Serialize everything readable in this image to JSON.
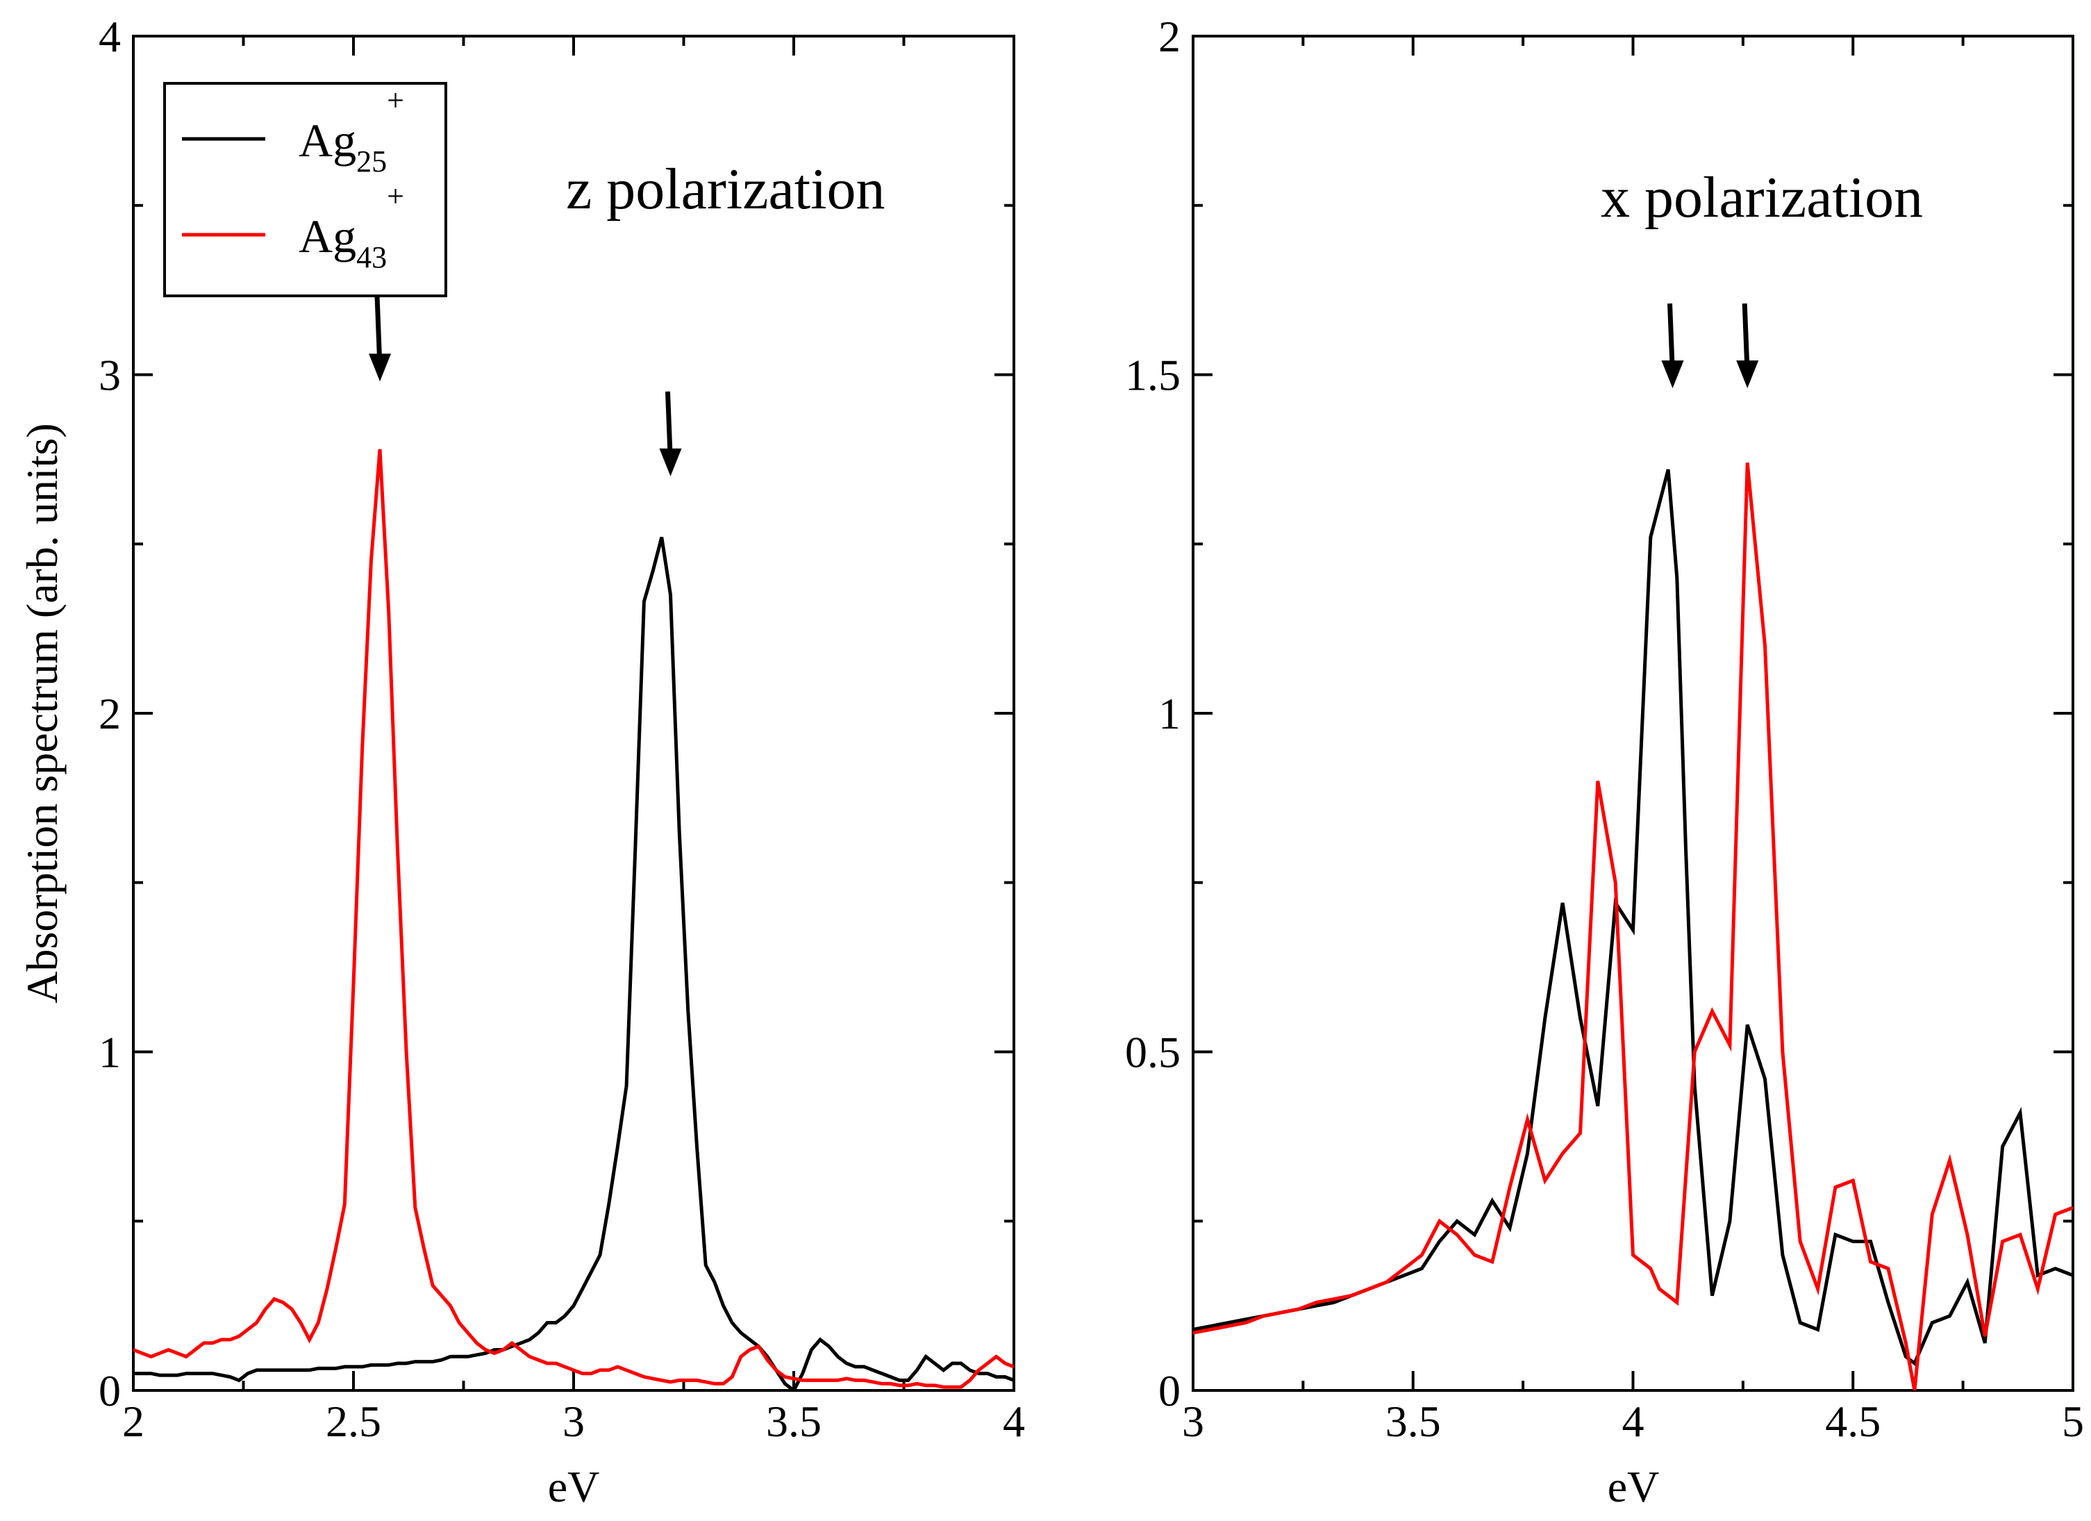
{
  "chart_data": [
    {
      "type": "line",
      "title": "",
      "annotation": "z polarization",
      "xlabel": "eV",
      "ylabel": "Absorption spectrum (arb. units)",
      "xlim": [
        2,
        4
      ],
      "ylim": [
        0,
        4
      ],
      "xticks": [
        2,
        2.5,
        3,
        3.5,
        4
      ],
      "xtick_labels": [
        "2",
        "2.5",
        "3",
        "3.5",
        "4"
      ],
      "yticks": [
        0,
        1,
        2,
        3,
        4
      ],
      "ytick_labels": [
        "0",
        "1",
        "2",
        "3",
        "4"
      ],
      "grid": false,
      "legend": {
        "placement": "top-left",
        "entries": [
          {
            "base": "Ag",
            "sub": "25",
            "sup": "+",
            "color": "#000000"
          },
          {
            "base": "Ag",
            "sub": "43",
            "sup": "+",
            "color": "#ff0000"
          }
        ]
      },
      "arrows": [
        {
          "x": 2.56,
          "y": 2.98
        },
        {
          "x": 3.22,
          "y": 2.7
        }
      ],
      "series": [
        {
          "name": "Ag25+",
          "color": "#000000",
          "x": [
            2.0,
            2.02,
            2.04,
            2.06,
            2.08,
            2.1,
            2.12,
            2.14,
            2.16,
            2.18,
            2.2,
            2.22,
            2.24,
            2.26,
            2.28,
            2.3,
            2.32,
            2.34,
            2.36,
            2.38,
            2.4,
            2.42,
            2.44,
            2.46,
            2.48,
            2.5,
            2.52,
            2.54,
            2.56,
            2.58,
            2.6,
            2.62,
            2.64,
            2.66,
            2.68,
            2.7,
            2.72,
            2.74,
            2.76,
            2.78,
            2.8,
            2.82,
            2.84,
            2.86,
            2.88,
            2.9,
            2.92,
            2.94,
            2.96,
            2.98,
            3.0,
            3.02,
            3.04,
            3.06,
            3.08,
            3.1,
            3.12,
            3.14,
            3.16,
            3.18,
            3.2,
            3.22,
            3.24,
            3.26,
            3.28,
            3.3,
            3.32,
            3.34,
            3.36,
            3.38,
            3.4,
            3.42,
            3.44,
            3.46,
            3.48,
            3.5,
            3.52,
            3.54,
            3.56,
            3.58,
            3.6,
            3.62,
            3.64,
            3.66,
            3.68,
            3.7,
            3.72,
            3.74,
            3.76,
            3.78,
            3.8,
            3.82,
            3.84,
            3.86,
            3.88,
            3.9,
            3.92,
            3.94,
            3.96,
            3.98,
            4.0
          ],
          "y": [
            0.05,
            0.05,
            0.05,
            0.045,
            0.045,
            0.045,
            0.05,
            0.05,
            0.05,
            0.05,
            0.045,
            0.04,
            0.03,
            0.05,
            0.06,
            0.06,
            0.06,
            0.06,
            0.06,
            0.06,
            0.06,
            0.065,
            0.065,
            0.065,
            0.07,
            0.07,
            0.07,
            0.075,
            0.075,
            0.075,
            0.08,
            0.08,
            0.085,
            0.085,
            0.085,
            0.09,
            0.1,
            0.1,
            0.1,
            0.105,
            0.11,
            0.12,
            0.12,
            0.13,
            0.14,
            0.15,
            0.17,
            0.2,
            0.2,
            0.22,
            0.25,
            0.3,
            0.35,
            0.4,
            0.55,
            0.72,
            0.9,
            1.6,
            2.33,
            2.42,
            2.52,
            2.35,
            1.65,
            1.12,
            0.72,
            0.37,
            0.32,
            0.25,
            0.2,
            0.17,
            0.15,
            0.13,
            0.1,
            0.06,
            0.02,
            0.0,
            0.05,
            0.12,
            0.15,
            0.13,
            0.1,
            0.08,
            0.07,
            0.07,
            0.06,
            0.05,
            0.04,
            0.03,
            0.03,
            0.06,
            0.1,
            0.08,
            0.06,
            0.08,
            0.08,
            0.06,
            0.05,
            0.05,
            0.04,
            0.04,
            0.03
          ]
        },
        {
          "name": "Ag43+",
          "color": "#ff0000",
          "x": [
            2.0,
            2.02,
            2.04,
            2.06,
            2.08,
            2.1,
            2.12,
            2.14,
            2.16,
            2.18,
            2.2,
            2.22,
            2.24,
            2.26,
            2.28,
            2.3,
            2.32,
            2.34,
            2.36,
            2.38,
            2.4,
            2.42,
            2.44,
            2.46,
            2.48,
            2.5,
            2.52,
            2.54,
            2.56,
            2.58,
            2.6,
            2.62,
            2.64,
            2.66,
            2.68,
            2.7,
            2.72,
            2.74,
            2.76,
            2.78,
            2.8,
            2.82,
            2.84,
            2.86,
            2.88,
            2.9,
            2.92,
            2.94,
            2.96,
            2.98,
            3.0,
            3.02,
            3.04,
            3.06,
            3.08,
            3.1,
            3.12,
            3.14,
            3.16,
            3.18,
            3.2,
            3.22,
            3.24,
            3.26,
            3.28,
            3.3,
            3.32,
            3.34,
            3.36,
            3.38,
            3.4,
            3.42,
            3.44,
            3.46,
            3.48,
            3.5,
            3.52,
            3.54,
            3.56,
            3.58,
            3.6,
            3.62,
            3.64,
            3.66,
            3.68,
            3.7,
            3.72,
            3.74,
            3.76,
            3.78,
            3.8,
            3.82,
            3.84,
            3.86,
            3.88,
            3.9,
            3.92,
            3.94,
            3.96,
            3.98,
            4.0
          ],
          "y": [
            0.12,
            0.11,
            0.1,
            0.11,
            0.12,
            0.11,
            0.1,
            0.12,
            0.14,
            0.14,
            0.15,
            0.15,
            0.16,
            0.18,
            0.2,
            0.24,
            0.27,
            0.26,
            0.24,
            0.2,
            0.15,
            0.2,
            0.3,
            0.42,
            0.55,
            1.2,
            1.9,
            2.45,
            2.78,
            2.3,
            1.6,
            1.0,
            0.54,
            0.42,
            0.31,
            0.28,
            0.25,
            0.2,
            0.17,
            0.14,
            0.12,
            0.11,
            0.12,
            0.14,
            0.12,
            0.1,
            0.09,
            0.08,
            0.08,
            0.07,
            0.06,
            0.05,
            0.05,
            0.06,
            0.06,
            0.07,
            0.06,
            0.05,
            0.04,
            0.035,
            0.03,
            0.025,
            0.03,
            0.03,
            0.03,
            0.025,
            0.02,
            0.02,
            0.04,
            0.1,
            0.12,
            0.13,
            0.09,
            0.06,
            0.04,
            0.035,
            0.03,
            0.03,
            0.03,
            0.03,
            0.03,
            0.035,
            0.03,
            0.03,
            0.025,
            0.02,
            0.02,
            0.015,
            0.015,
            0.02,
            0.015,
            0.015,
            0.01,
            0.01,
            0.01,
            0.03,
            0.06,
            0.08,
            0.1,
            0.08,
            0.07
          ]
        }
      ]
    },
    {
      "type": "line",
      "title": "",
      "annotation": "x polarization",
      "xlabel": "eV",
      "ylabel": "",
      "xlim": [
        3,
        5
      ],
      "ylim": [
        0,
        2
      ],
      "xticks": [
        3,
        3.5,
        4,
        4.5,
        5
      ],
      "xtick_labels": [
        "3",
        "3.5",
        "4",
        "4.5",
        "5"
      ],
      "yticks": [
        0,
        0.5,
        1,
        1.5,
        2
      ],
      "ytick_labels": [
        "0",
        "0.5",
        "1",
        "1.5",
        "2"
      ],
      "grid": false,
      "arrows": [
        {
          "x": 4.09,
          "y": 1.48
        },
        {
          "x": 4.26,
          "y": 1.48
        }
      ],
      "series": [
        {
          "name": "Ag25+",
          "color": "#000000",
          "x": [
            3.0,
            3.04,
            3.08,
            3.12,
            3.16,
            3.2,
            3.24,
            3.28,
            3.32,
            3.36,
            3.4,
            3.44,
            3.48,
            3.52,
            3.56,
            3.6,
            3.64,
            3.68,
            3.72,
            3.76,
            3.8,
            3.84,
            3.88,
            3.92,
            3.96,
            4.0,
            4.04,
            4.08,
            4.1,
            4.12,
            4.14,
            4.18,
            4.22,
            4.26,
            4.3,
            4.34,
            4.38,
            4.42,
            4.46,
            4.5,
            4.54,
            4.58,
            4.62,
            4.64,
            4.68,
            4.72,
            4.76,
            4.8,
            4.84,
            4.88,
            4.92,
            4.96,
            5.0
          ],
          "y": [
            0.09,
            0.095,
            0.1,
            0.105,
            0.11,
            0.115,
            0.12,
            0.125,
            0.13,
            0.14,
            0.15,
            0.16,
            0.17,
            0.18,
            0.22,
            0.25,
            0.23,
            0.28,
            0.24,
            0.35,
            0.55,
            0.72,
            0.55,
            0.42,
            0.72,
            0.68,
            1.26,
            1.36,
            1.2,
            0.8,
            0.45,
            0.14,
            0.25,
            0.54,
            0.46,
            0.2,
            0.1,
            0.09,
            0.23,
            0.22,
            0.22,
            0.13,
            0.05,
            0.04,
            0.1,
            0.11,
            0.16,
            0.07,
            0.36,
            0.41,
            0.17,
            0.18,
            0.17
          ]
        },
        {
          "name": "Ag43+",
          "color": "#ff0000",
          "x": [
            3.0,
            3.04,
            3.08,
            3.12,
            3.16,
            3.2,
            3.24,
            3.28,
            3.32,
            3.36,
            3.4,
            3.44,
            3.48,
            3.52,
            3.56,
            3.6,
            3.64,
            3.68,
            3.72,
            3.76,
            3.8,
            3.84,
            3.88,
            3.92,
            3.96,
            4.0,
            4.04,
            4.06,
            4.1,
            4.14,
            4.18,
            4.22,
            4.26,
            4.3,
            4.34,
            4.38,
            4.42,
            4.46,
            4.5,
            4.54,
            4.58,
            4.62,
            4.64,
            4.68,
            4.72,
            4.76,
            4.8,
            4.84,
            4.88,
            4.92,
            4.96,
            5.0
          ],
          "y": [
            0.085,
            0.09,
            0.095,
            0.1,
            0.11,
            0.115,
            0.12,
            0.13,
            0.135,
            0.14,
            0.15,
            0.16,
            0.18,
            0.2,
            0.25,
            0.23,
            0.2,
            0.19,
            0.3,
            0.4,
            0.31,
            0.35,
            0.38,
            0.9,
            0.75,
            0.2,
            0.18,
            0.15,
            0.13,
            0.5,
            0.56,
            0.51,
            1.37,
            1.1,
            0.5,
            0.22,
            0.15,
            0.3,
            0.31,
            0.19,
            0.18,
            0.07,
            0.0,
            0.26,
            0.34,
            0.23,
            0.08,
            0.22,
            0.23,
            0.15,
            0.26,
            0.27
          ]
        }
      ]
    }
  ]
}
